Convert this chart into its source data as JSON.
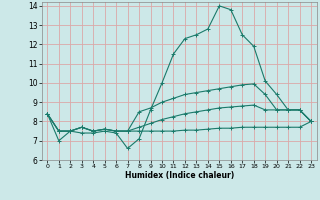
{
  "title": "",
  "xlabel": "Humidex (Indice chaleur)",
  "background_color": "#cce8e8",
  "grid_color_v": "#dba8a8",
  "grid_color_h": "#dba8a8",
  "line_color": "#1a7a6a",
  "xlim": [
    -0.5,
    23.5
  ],
  "ylim": [
    6,
    14.2
  ],
  "xticks": [
    0,
    1,
    2,
    3,
    4,
    5,
    6,
    7,
    8,
    9,
    10,
    11,
    12,
    13,
    14,
    15,
    16,
    17,
    18,
    19,
    20,
    21,
    22,
    23
  ],
  "yticks": [
    6,
    7,
    8,
    9,
    10,
    11,
    12,
    13,
    14
  ],
  "lines": [
    [
      8.4,
      7.0,
      7.5,
      7.4,
      7.4,
      7.5,
      7.4,
      6.6,
      7.1,
      8.6,
      10.0,
      11.5,
      12.3,
      12.5,
      12.8,
      14.0,
      13.8,
      12.5,
      11.9,
      10.1,
      9.4,
      8.6,
      8.6,
      8.0
    ],
    [
      8.4,
      7.5,
      7.5,
      7.7,
      7.5,
      7.6,
      7.5,
      7.5,
      8.5,
      8.7,
      9.0,
      9.2,
      9.4,
      9.5,
      9.6,
      9.7,
      9.8,
      9.9,
      9.95,
      9.4,
      8.6,
      8.6,
      8.6,
      8.0
    ],
    [
      8.4,
      7.5,
      7.5,
      7.7,
      7.5,
      7.6,
      7.5,
      7.5,
      7.7,
      7.9,
      8.1,
      8.25,
      8.4,
      8.5,
      8.6,
      8.7,
      8.75,
      8.8,
      8.85,
      8.6,
      8.6,
      8.6,
      8.6,
      8.0
    ],
    [
      8.4,
      7.5,
      7.5,
      7.7,
      7.5,
      7.6,
      7.5,
      7.5,
      7.5,
      7.5,
      7.5,
      7.5,
      7.55,
      7.55,
      7.6,
      7.65,
      7.65,
      7.7,
      7.7,
      7.7,
      7.7,
      7.7,
      7.7,
      8.0
    ]
  ]
}
